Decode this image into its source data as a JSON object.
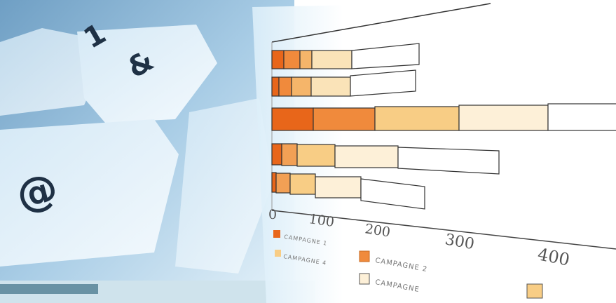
{
  "keyboard": {
    "keys": [
      "1",
      "&",
      "@"
    ]
  },
  "chart_printout": {
    "axis_ticks": [
      "0",
      "100",
      "200",
      "300",
      "400"
    ],
    "legend": [
      "CAMPAGNE 1",
      "CAMPAGNE 4",
      "CAMPAGNE 2",
      "CAMPAGNE"
    ]
  }
}
